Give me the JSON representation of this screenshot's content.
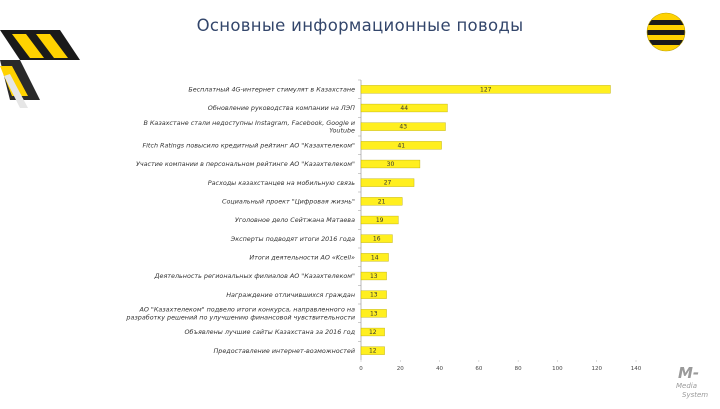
{
  "page": {
    "title": "Основные информационные поводы"
  },
  "colors": {
    "bar": "#ffef1f",
    "bar_stroke": "#b8a800",
    "title": "#33466b",
    "logo_yellow": "#ffd200",
    "logo_black": "#1a1a1a"
  },
  "footer_logo": {
    "mark": "M-",
    "line1": "Media",
    "line2": "System"
  },
  "chart_data": {
    "type": "bar",
    "orientation": "horizontal",
    "title": "",
    "xlabel": "",
    "ylabel": "",
    "xlim": [
      0,
      140
    ],
    "xticks": [
      "0",
      "20",
      "40",
      "60",
      "80",
      "100",
      "120",
      "140"
    ],
    "grid": false,
    "categories": [
      [
        "Бесплатный 4G-интернет стимулят в Казахстане"
      ],
      [
        "Обновление руководства компании на ЛЭП"
      ],
      [
        "В Казахстане стали недоступны Instagram, Facebook, Google и",
        "Youtube"
      ],
      [
        "Fitch Ratings повысило кредитный рейтинг АО \"Казахтелеком\""
      ],
      [
        "Участие компании в персональном рейтинге АО \"Казахтелеком\""
      ],
      [
        "Расходы казахстанцев на мобильную связь"
      ],
      [
        "Социальный проект \"Цифровая жизнь\""
      ],
      [
        "Уголовное дело Сейтжана Матаева"
      ],
      [
        "Эксперты подводят итоги 2016 года"
      ],
      [
        "Итоги деятельности АО «Kcell»"
      ],
      [
        "Деятельность региональных филиалов АО \"Казахтелеком\""
      ],
      [
        "Награждение отличившихся граждан"
      ],
      [
        "АО \"Казахтелеком\" подвело итоги конкурса, направленного на",
        "разработку решений по улучшению финансовой чувствительности"
      ],
      [
        "Объявлены лучшие сайты Казахстана за 2016 год"
      ],
      [
        "Предоставление интернет-возможностей"
      ]
    ],
    "values": [
      127,
      44,
      43,
      41,
      30,
      27,
      21,
      19,
      16,
      14,
      13,
      13,
      13,
      12,
      12
    ],
    "value_labels": [
      "127",
      "44",
      "43",
      "41",
      "30",
      "27",
      "21",
      "19",
      "16",
      "14",
      "13",
      "13",
      "13",
      "12",
      "12"
    ]
  }
}
